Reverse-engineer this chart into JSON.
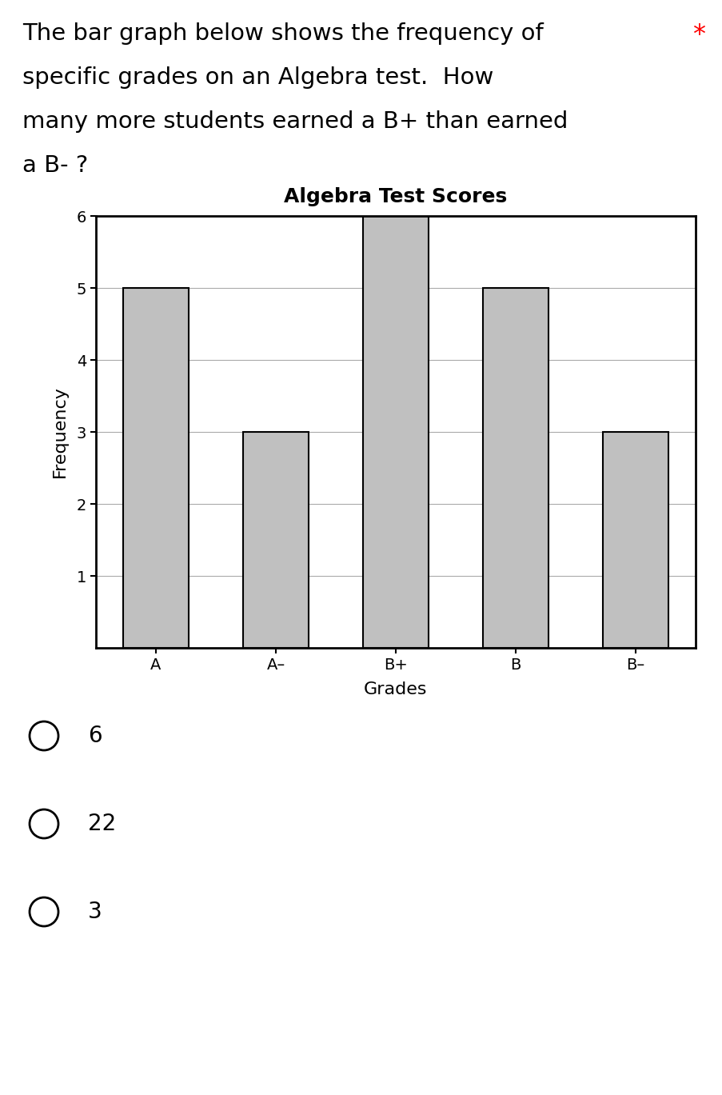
{
  "title": "Algebra Test Scores",
  "xlabel": "Grades",
  "ylabel": "Frequency",
  "categories": [
    "A",
    "A–",
    "B+",
    "B",
    "B–"
  ],
  "values": [
    5,
    3,
    6,
    5,
    3
  ],
  "bar_color": "#c0c0c0",
  "bar_edge_color": "#000000",
  "ylim": [
    0,
    6
  ],
  "yticks": [
    1,
    2,
    3,
    4,
    5,
    6
  ],
  "title_fontsize": 18,
  "axis_label_fontsize": 16,
  "tick_fontsize": 14,
  "question_lines": [
    "The bar graph below shows the frequency of",
    "specific grades on an Algebra test.  How",
    "many more students earned a B+ than earned",
    "a B- ?"
  ],
  "asterisk": "*",
  "choices": [
    "6",
    "22",
    "3"
  ],
  "background_color": "#ffffff",
  "sidebar_color": "#808080",
  "question_fontsize": 21,
  "choice_fontsize": 20
}
